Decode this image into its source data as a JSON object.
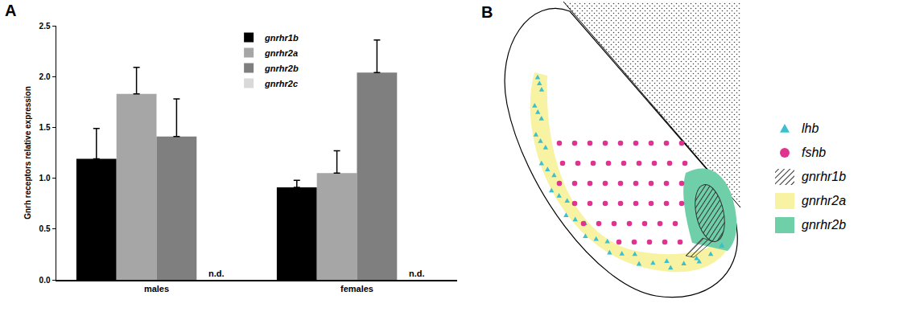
{
  "chart_data": {
    "panel_label": "A",
    "type": "bar",
    "categories": [
      "males",
      "females"
    ],
    "y_label": "Gnrh receptors relative expression",
    "ylim": [
      0,
      2.5
    ],
    "yticks": [
      {
        "value": 0,
        "label": "0.0"
      },
      0.5,
      {
        "value": 1,
        "label": "1.0"
      },
      1.5,
      {
        "value": 2,
        "label": "2.0"
      },
      2.5
    ],
    "grid": false,
    "legend": "top",
    "series": [
      {
        "name": "gnrhr1b",
        "color": "#000000",
        "values": [
          1.19,
          0.91
        ],
        "errors": [
          0.3,
          0.07
        ]
      },
      {
        "name": "gnrhr2a",
        "color": "#a6a6a6",
        "values": [
          1.83,
          1.05
        ],
        "errors": [
          0.26,
          0.22
        ]
      },
      {
        "name": "gnrhr2b",
        "color": "#7f7f7f",
        "values": [
          1.41,
          2.04
        ],
        "errors": [
          0.37,
          0.32
        ]
      },
      {
        "name": "gnrhr2c",
        "color": "#d9d9d9",
        "values": [
          null,
          null
        ],
        "value_labels": [
          "n.d.",
          "n.d."
        ]
      }
    ]
  },
  "diagram": {
    "panel_label": "B",
    "legend": [
      {
        "label": "lhb",
        "marker": "triangle",
        "color": "#3cbfcf"
      },
      {
        "label": "fshb",
        "marker": "circle",
        "color": "#e0338f"
      },
      {
        "label": "gnrhr1b",
        "marker": "hatched",
        "color": "#333333"
      },
      {
        "label": "gnrhr2a",
        "marker": "area",
        "color": "#f7f3a2"
      },
      {
        "label": "gnrhr2b",
        "marker": "area",
        "color": "#6fcfa8"
      }
    ]
  }
}
